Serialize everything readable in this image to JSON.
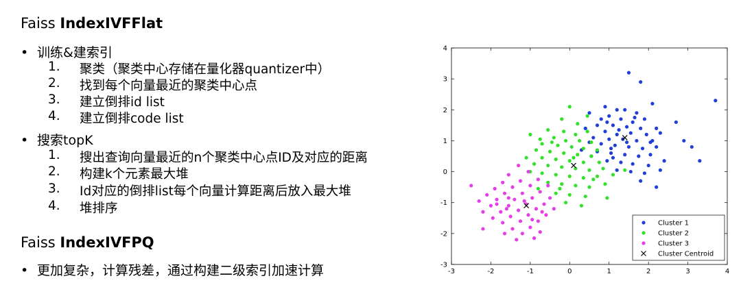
{
  "section1": {
    "title_prefix": "Faiss ",
    "title_bold": "IndexIVFFlat",
    "bullets": [
      {
        "label": "训练&建索引",
        "items": [
          {
            "num": "1.",
            "text": "聚类（聚类中心存储在量化器quantizer中）"
          },
          {
            "num": "2.",
            "text": "找到每个向量最近的聚类中心点"
          },
          {
            "num": "3.",
            "text": "建立倒排id list"
          },
          {
            "num": "4.",
            "text": "建立倒排code list"
          }
        ]
      },
      {
        "label": "搜索topK",
        "items": [
          {
            "num": "1.",
            "text": "搜出查询向量最近的n个聚类中心点ID及对应的距离"
          },
          {
            "num": "2.",
            "text": "构建k个元素最大堆"
          },
          {
            "num": "3.",
            "text": "Id对应的倒排list每个向量计算距离后放入最大堆"
          },
          {
            "num": "4.",
            "text": "堆排序"
          }
        ]
      }
    ]
  },
  "section2": {
    "title_prefix": "Faiss ",
    "title_bold": "IndexIVFPQ",
    "bullet": "更加复杂，计算残差，通过构建二级索引加速计算"
  },
  "bullet_symbol": "•",
  "chart_data": {
    "type": "scatter",
    "xlim": [
      -3,
      4
    ],
    "ylim": [
      -3,
      4
    ],
    "xticks": [
      "-3",
      "-2",
      "-1",
      "0",
      "1",
      "2",
      "3",
      "4"
    ],
    "yticks": [
      "-3",
      "-2",
      "-1",
      "0",
      "1",
      "2",
      "3",
      "4"
    ],
    "grid": false,
    "legend_position": "bottom-right",
    "series": [
      {
        "name": "Cluster 1",
        "color": "#1f3fd6",
        "marker": "dot",
        "points": [
          [
            1.5,
            3.2
          ],
          [
            1.8,
            2.9
          ],
          [
            3.7,
            2.3
          ],
          [
            2.1,
            2.2
          ],
          [
            0.9,
            2.1
          ],
          [
            1.2,
            2.0
          ],
          [
            0.5,
            1.9
          ],
          [
            1.4,
            2.0
          ],
          [
            1.7,
            1.9
          ],
          [
            1.9,
            1.7
          ],
          [
            2.7,
            1.6
          ],
          [
            1.0,
            1.8
          ],
          [
            0.8,
            1.7
          ],
          [
            1.3,
            1.7
          ],
          [
            1.6,
            1.6
          ],
          [
            0.7,
            1.5
          ],
          [
            1.1,
            1.5
          ],
          [
            1.45,
            1.45
          ],
          [
            1.8,
            1.4
          ],
          [
            2.2,
            1.4
          ],
          [
            0.4,
            1.4
          ],
          [
            0.9,
            1.3
          ],
          [
            1.2,
            1.2
          ],
          [
            1.55,
            1.25
          ],
          [
            1.95,
            1.2
          ],
          [
            2.3,
            1.25
          ],
          [
            0.6,
            1.1
          ],
          [
            1.0,
            1.05
          ],
          [
            1.35,
            1.05
          ],
          [
            1.7,
            1.0
          ],
          [
            2.1,
            1.0
          ],
          [
            2.9,
            1.0
          ],
          [
            0.5,
            0.95
          ],
          [
            0.8,
            0.9
          ],
          [
            1.15,
            0.85
          ],
          [
            1.5,
            0.8
          ],
          [
            1.85,
            0.75
          ],
          [
            2.2,
            0.8
          ],
          [
            3.1,
            0.8
          ],
          [
            0.3,
            0.7
          ],
          [
            0.7,
            0.65
          ],
          [
            1.05,
            0.6
          ],
          [
            1.4,
            0.55
          ],
          [
            1.75,
            0.5
          ],
          [
            2.05,
            0.55
          ],
          [
            0.95,
            0.35
          ],
          [
            1.3,
            0.3
          ],
          [
            1.6,
            0.25
          ],
          [
            2.0,
            0.2
          ],
          [
            2.4,
            0.35
          ],
          [
            3.3,
            0.35
          ],
          [
            1.2,
            0.05
          ],
          [
            1.55,
            0.0
          ],
          [
            1.9,
            -0.05
          ],
          [
            2.3,
            0.05
          ],
          [
            1.8,
            -0.3
          ],
          [
            2.2,
            -0.5
          ],
          [
            1.05,
            0.75
          ],
          [
            0.55,
            0.5
          ],
          [
            1.25,
            1.35
          ],
          [
            0.95,
            1.6
          ],
          [
            1.65,
            1.75
          ],
          [
            2.05,
            0.95
          ],
          [
            1.45,
            0.95
          ],
          [
            1.1,
            0.45
          ]
        ]
      },
      {
        "name": "Cluster 2",
        "color": "#33e02a",
        "marker": "dot",
        "points": [
          [
            0.0,
            2.1
          ],
          [
            0.45,
            1.8
          ],
          [
            -0.2,
            1.7
          ],
          [
            0.2,
            1.55
          ],
          [
            -0.55,
            1.35
          ],
          [
            -0.15,
            1.3
          ],
          [
            0.15,
            1.2
          ],
          [
            -1.0,
            1.2
          ],
          [
            -0.4,
            1.1
          ],
          [
            -0.1,
            1.0
          ],
          [
            0.25,
            1.0
          ],
          [
            0.55,
            0.95
          ],
          [
            -0.7,
            0.9
          ],
          [
            -0.3,
            0.85
          ],
          [
            0.05,
            0.8
          ],
          [
            0.35,
            0.75
          ],
          [
            0.7,
            0.7
          ],
          [
            -0.85,
            0.7
          ],
          [
            -0.5,
            0.65
          ],
          [
            -0.15,
            0.6
          ],
          [
            0.2,
            0.55
          ],
          [
            0.55,
            0.5
          ],
          [
            -1.1,
            0.45
          ],
          [
            -0.7,
            0.45
          ],
          [
            -0.35,
            0.4
          ],
          [
            0.0,
            0.35
          ],
          [
            0.35,
            0.3
          ],
          [
            0.75,
            0.3
          ],
          [
            -0.9,
            0.25
          ],
          [
            -0.55,
            0.2
          ],
          [
            -0.2,
            0.15
          ],
          [
            0.15,
            0.1
          ],
          [
            0.5,
            0.05
          ],
          [
            0.85,
            0.1
          ],
          [
            -1.0,
            0.0
          ],
          [
            -0.7,
            -0.05
          ],
          [
            -0.35,
            -0.1
          ],
          [
            0.0,
            -0.15
          ],
          [
            0.35,
            -0.2
          ],
          [
            0.7,
            -0.15
          ],
          [
            -0.55,
            -0.35
          ],
          [
            -0.2,
            -0.4
          ],
          [
            0.15,
            -0.45
          ],
          [
            0.5,
            -0.5
          ],
          [
            0.9,
            -0.4
          ],
          [
            -0.8,
            -0.55
          ],
          [
            -0.35,
            -0.7
          ],
          [
            0.0,
            -0.75
          ],
          [
            0.4,
            -0.8
          ],
          [
            -0.1,
            -1.0
          ],
          [
            0.3,
            -1.1
          ],
          [
            0.95,
            -0.85
          ],
          [
            1.4,
            0.05
          ],
          [
            0.1,
            0.45
          ],
          [
            -0.45,
            0.95
          ],
          [
            0.45,
            1.3
          ],
          [
            -0.25,
            -0.55
          ],
          [
            -0.75,
            1.05
          ],
          [
            0.6,
            -0.25
          ],
          [
            1.1,
            -0.1
          ]
        ]
      },
      {
        "name": "Cluster 3",
        "color": "#e63ee6",
        "marker": "dot",
        "points": [
          [
            -1.3,
            0.2
          ],
          [
            -1.05,
            0.0
          ],
          [
            -1.55,
            -0.1
          ],
          [
            -0.8,
            -0.25
          ],
          [
            -1.25,
            -0.3
          ],
          [
            -1.7,
            -0.35
          ],
          [
            -0.55,
            -0.45
          ],
          [
            -1.0,
            -0.45
          ],
          [
            -1.45,
            -0.5
          ],
          [
            -1.9,
            -0.55
          ],
          [
            -2.5,
            -0.45
          ],
          [
            -0.75,
            -0.65
          ],
          [
            -1.2,
            -0.7
          ],
          [
            -1.65,
            -0.7
          ],
          [
            -2.1,
            -0.75
          ],
          [
            -0.5,
            -0.85
          ],
          [
            -0.95,
            -0.85
          ],
          [
            -1.4,
            -0.9
          ],
          [
            -1.85,
            -0.9
          ],
          [
            -2.3,
            -0.95
          ],
          [
            -0.65,
            -1.05
          ],
          [
            -1.1,
            -1.05
          ],
          [
            -1.55,
            -1.1
          ],
          [
            -2.0,
            -1.1
          ],
          [
            -0.4,
            -1.2
          ],
          [
            -0.85,
            -1.2
          ],
          [
            -1.3,
            -1.25
          ],
          [
            -1.75,
            -1.3
          ],
          [
            -2.2,
            -1.3
          ],
          [
            -0.6,
            -1.4
          ],
          [
            -1.05,
            -1.4
          ],
          [
            -1.5,
            -1.45
          ],
          [
            -1.95,
            -1.5
          ],
          [
            -0.8,
            -1.6
          ],
          [
            -1.25,
            -1.6
          ],
          [
            -1.7,
            -1.65
          ],
          [
            -1.0,
            -1.8
          ],
          [
            -1.45,
            -1.85
          ],
          [
            -2.2,
            -1.85
          ],
          [
            -0.75,
            -1.95
          ],
          [
            -1.2,
            -2.0
          ],
          [
            -1.65,
            -2.0
          ],
          [
            -1.35,
            -2.2
          ],
          [
            -0.9,
            -2.15
          ],
          [
            -1.55,
            -0.85
          ],
          [
            -0.95,
            -1.55
          ],
          [
            -1.6,
            -1.2
          ],
          [
            -1.15,
            -0.95
          ],
          [
            -0.7,
            -1.3
          ],
          [
            -1.85,
            -1.05
          ]
        ]
      },
      {
        "name": "Cluster Centroid",
        "color": "#000000",
        "marker": "x",
        "points": [
          [
            1.4,
            1.1
          ],
          [
            0.1,
            0.2
          ],
          [
            -1.1,
            -1.1
          ]
        ]
      }
    ]
  }
}
